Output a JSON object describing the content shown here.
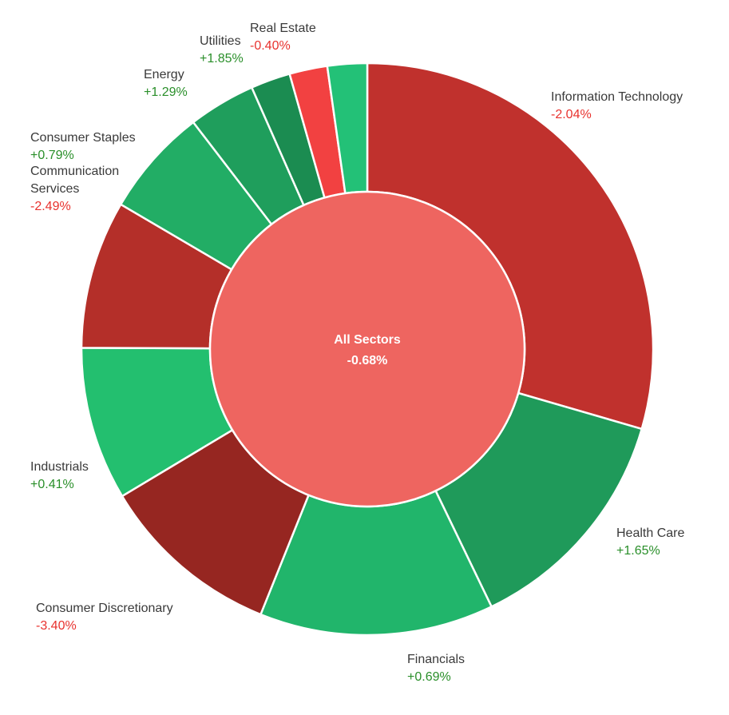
{
  "chart_data": {
    "type": "pie",
    "subtype": "donut-with-center",
    "center": {
      "label": "All Sectors",
      "value": "-0.68%",
      "color": "#ee6560"
    },
    "series": [
      {
        "name": "Information Technology",
        "change": "-2.04%",
        "weight": 30.3,
        "color": "#c0312d"
      },
      {
        "name": "Health Care",
        "change": "+1.65%",
        "weight": 13.7,
        "color": "#1f9a5a"
      },
      {
        "name": "Financials",
        "change": "+0.69%",
        "weight": 13.6,
        "color": "#21b56b"
      },
      {
        "name": "Consumer Discretionary",
        "change": "-3.40%",
        "weight": 10.6,
        "color": "#962621"
      },
      {
        "name": "Industrials",
        "change": "+0.41%",
        "weight": 8.9,
        "color": "#23bf6f"
      },
      {
        "name": "Communication Services",
        "change": "-2.49%",
        "weight": 8.6,
        "color": "#b42f29"
      },
      {
        "name": "Consumer Staples",
        "change": "+0.79%",
        "weight": 6.3,
        "color": "#22ad65"
      },
      {
        "name": "Energy",
        "change": "+1.29%",
        "weight": 3.9,
        "color": "#1f9e5c"
      },
      {
        "name": "Utilities",
        "change": "+1.85%",
        "weight": 2.3,
        "color": "#1b8c51"
      },
      {
        "name": "Real Estate",
        "change": "-0.40%",
        "weight": 2.2,
        "color": "#f24141"
      },
      {
        "name": "",
        "change": "",
        "weight": 2.3,
        "color": "#23c177"
      }
    ]
  },
  "colors": {
    "positive_text": "#2a8f2a",
    "negative_text": "#e8322e"
  }
}
